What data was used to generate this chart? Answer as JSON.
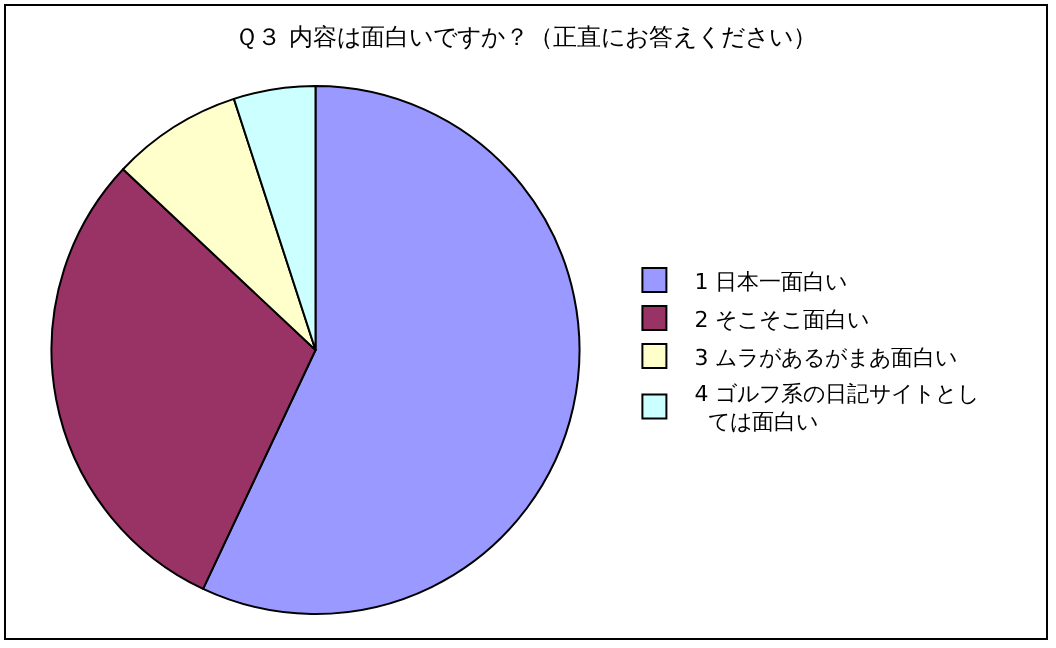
{
  "chart_data": {
    "type": "pie",
    "title": "Ｑ３ 内容は面白いですか？（正直にお答えください）",
    "categories": [
      "1 日本一面白い",
      "2 そこそこ面白い",
      "3 ムラがあるがまあ面白い",
      "4 ゴルフ系の日記サイトとしては面白い"
    ],
    "values": [
      57,
      30,
      8,
      5
    ],
    "colors": [
      "#9999ff",
      "#993366",
      "#ffffcc",
      "#ccffff"
    ],
    "legend": "right"
  }
}
